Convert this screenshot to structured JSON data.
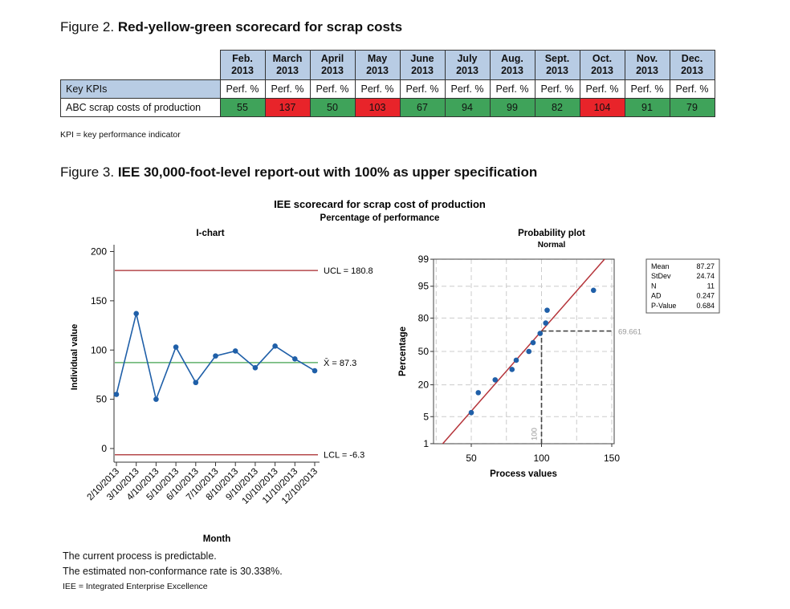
{
  "figure2": {
    "label": "Figure 2.",
    "title": "Red-yellow-green scorecard for scrap costs",
    "months": [
      {
        "month": "Feb.",
        "year": "2013"
      },
      {
        "month": "March",
        "year": "2013"
      },
      {
        "month": "April",
        "year": "2013"
      },
      {
        "month": "May",
        "year": "2013"
      },
      {
        "month": "June",
        "year": "2013"
      },
      {
        "month": "July",
        "year": "2013"
      },
      {
        "month": "Aug.",
        "year": "2013"
      },
      {
        "month": "Sept.",
        "year": "2013"
      },
      {
        "month": "Oct.",
        "year": "2013"
      },
      {
        "month": "Nov.",
        "year": "2013"
      },
      {
        "month": "Dec.",
        "year": "2013"
      }
    ],
    "row_header": "Key KPIs",
    "unit": "Perf. %",
    "row_label": "ABC scrap costs of production",
    "values": [
      "55",
      "137",
      "50",
      "103",
      "67",
      "94",
      "99",
      "82",
      "104",
      "91",
      "79"
    ],
    "status": [
      "green",
      "red",
      "green",
      "red",
      "green",
      "green",
      "green",
      "green",
      "red",
      "green",
      "green"
    ],
    "colors": {
      "green": "#3fa35a",
      "red": "#e8242a",
      "header": "#b8cce4"
    },
    "note": "KPI = key performance indicator"
  },
  "figure3": {
    "label": "Figure 3.",
    "title": "IEE 30,000-foot-level report-out with 100% as upper specification",
    "chart_title": "IEE scorecard for scrap cost of production",
    "chart_subtitle": "Percentage of performance",
    "conclusion_1": "The current process is predictable.",
    "conclusion_2": "The estimated non-conformance rate is 30.338%.",
    "note": "IEE = Integrated Enterprise Excellence"
  },
  "chart_data": [
    {
      "type": "line",
      "title": "I-chart",
      "xlabel": "Month",
      "ylabel": "Individual value",
      "categories": [
        "2/10/2013",
        "3/10/2013",
        "4/10/2013",
        "5/10/2013",
        "6/10/2013",
        "7/10/2013",
        "8/10/2013",
        "9/10/2013",
        "10/10/2013",
        "11/10/2013",
        "12/10/2013"
      ],
      "values": [
        55,
        137,
        50,
        103,
        67,
        94,
        99,
        82,
        104,
        91,
        79
      ],
      "yticks": [
        "0",
        "50",
        "100",
        "150",
        "200"
      ],
      "ylim": [
        -13,
        210
      ],
      "ucl": 180.8,
      "ucl_label": "UCL = 180.8",
      "mean": 87.3,
      "mean_label": "X̄ = 87.3",
      "lcl": -6.3,
      "lcl_label": "LCL = -6.3",
      "colors": {
        "data": "#1f5fa8",
        "limits": "#b5484b",
        "mean": "#5fb06a"
      }
    },
    {
      "type": "scatter",
      "title": "Probability plot",
      "subtitle": "Normal",
      "xlabel": "Process values",
      "ylabel": "Percentage",
      "xticks": [
        "50",
        "100",
        "150"
      ],
      "yticks": [
        "1",
        "5",
        "20",
        "50",
        "80",
        "95",
        "99"
      ],
      "xlim": [
        25,
        152
      ],
      "values": [
        50,
        55,
        67,
        79,
        82,
        91,
        94,
        99,
        103,
        104,
        137
      ],
      "fit": {
        "mean": 87.27,
        "stdev": 24.74
      },
      "spec_x": 100,
      "spec_x_label": "100",
      "spec_pct": 69.661,
      "spec_pct_label": "69.661",
      "stats": [
        {
          "label": "Mean",
          "value": "87.27"
        },
        {
          "label": "StDev",
          "value": "24.74"
        },
        {
          "label": "N",
          "value": "11"
        },
        {
          "label": "AD",
          "value": "0.247"
        },
        {
          "label": "P-Value",
          "value": "0.684"
        }
      ],
      "colors": {
        "points": "#1f5fa8",
        "fit": "#b5343a"
      }
    }
  ]
}
